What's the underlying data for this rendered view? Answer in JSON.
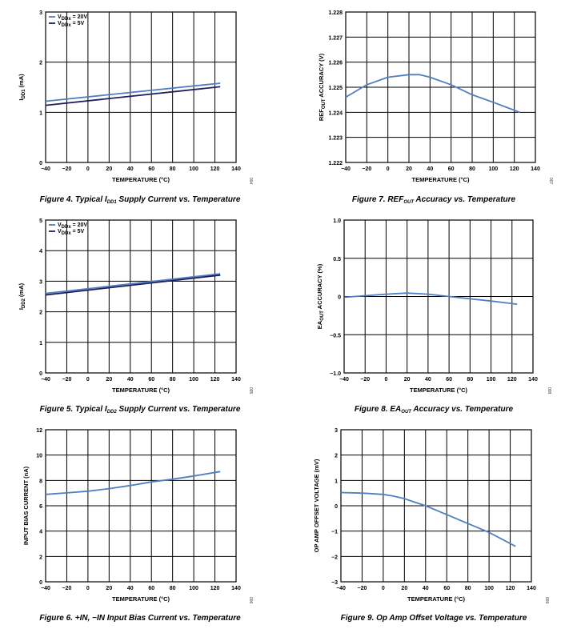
{
  "chart_data": [
    {
      "id": "fig4",
      "type": "line",
      "caption_parts": [
        "Figure 4. Typical I",
        "DD1",
        " Supply Current vs. Temperature"
      ],
      "xlabel": "TEMPERATURE (°C)",
      "ylabel_parts": [
        "I",
        "DD1",
        " (mA)"
      ],
      "xlim": [
        -40,
        140
      ],
      "ylim": [
        0,
        3
      ],
      "x_ticks": [
        "−40",
        "−20",
        "0",
        "20",
        "40",
        "60",
        "80",
        "100",
        "120",
        "140"
      ],
      "y_ticks": [
        "0",
        "1",
        "2",
        "3"
      ],
      "legend": [
        [
          "V",
          "DDx",
          " = 20V"
        ],
        [
          "V",
          "DDx",
          " = 5V"
        ]
      ],
      "series": [
        {
          "name": "VDDx = 20V",
          "color": "#4f7fc0",
          "x": [
            -40,
            125
          ],
          "y": [
            1.22,
            1.58
          ]
        },
        {
          "name": "VDDx = 5V",
          "color": "#1f1f5e",
          "x": [
            -40,
            125
          ],
          "y": [
            1.14,
            1.51
          ]
        }
      ],
      "code": "004"
    },
    {
      "id": "fig7",
      "type": "line",
      "caption_parts": [
        "Figure 7. REF",
        "OUT",
        " Accuracy vs. Temperature"
      ],
      "xlabel": "TEMPERATURE (°C)",
      "ylabel_parts": [
        "REF",
        "OUT",
        " ACCURACY (V)"
      ],
      "xlim": [
        -40,
        140
      ],
      "ylim": [
        1.222,
        1.228
      ],
      "x_ticks": [
        "−40",
        "−20",
        "0",
        "20",
        "40",
        "60",
        "80",
        "100",
        "120",
        "140"
      ],
      "y_ticks": [
        "1.222",
        "1.223",
        "1.224",
        "1.225",
        "1.226",
        "1.227",
        "1.228"
      ],
      "series": [
        {
          "name": "REFOUT",
          "color": "#4f7fc0",
          "x": [
            -40,
            -20,
            0,
            20,
            30,
            40,
            60,
            80,
            100,
            125
          ],
          "y": [
            1.2246,
            1.2251,
            1.2254,
            1.2255,
            1.2255,
            1.2254,
            1.2251,
            1.2247,
            1.2244,
            1.224
          ]
        }
      ],
      "code": "007"
    },
    {
      "id": "fig5",
      "type": "line",
      "caption_parts": [
        "Figure 5. Typical I",
        "DD2",
        " Supply Current vs. Temperature"
      ],
      "xlabel": "TEMPERATURE (°C)",
      "ylabel_parts": [
        "I",
        "DD2",
        " (mA)"
      ],
      "xlim": [
        -40,
        140
      ],
      "ylim": [
        0,
        5
      ],
      "x_ticks": [
        "−40",
        "−20",
        "0",
        "20",
        "40",
        "60",
        "80",
        "100",
        "120",
        "140"
      ],
      "y_ticks": [
        "0",
        "1",
        "2",
        "3",
        "4",
        "5"
      ],
      "legend": [
        [
          "V",
          "DDx",
          " = 20V"
        ],
        [
          "V",
          "DDx",
          " = 5V"
        ]
      ],
      "series": [
        {
          "name": "VDDx = 20V",
          "color": "#4f7fc0",
          "x": [
            -40,
            125
          ],
          "y": [
            2.6,
            3.24
          ]
        },
        {
          "name": "VDDx = 5V",
          "color": "#1f1f5e",
          "x": [
            -40,
            125
          ],
          "y": [
            2.55,
            3.2
          ]
        }
      ],
      "code": "005"
    },
    {
      "id": "fig8",
      "type": "line",
      "caption_parts": [
        "Figure 8. EA",
        "OUT",
        " Accuracy vs. Temperature"
      ],
      "xlabel": "TEMPERATURE (°C)",
      "ylabel_parts": [
        "EA",
        "OUT",
        " ACCURACY (%)"
      ],
      "xlim": [
        -40,
        140
      ],
      "ylim": [
        -1.0,
        1.0
      ],
      "x_ticks": [
        "−40",
        "−20",
        "0",
        "20",
        "40",
        "60",
        "80",
        "100",
        "120",
        "140"
      ],
      "y_ticks": [
        "−1.0",
        "−0.5",
        "0",
        "0.5",
        "1.0"
      ],
      "series": [
        {
          "name": "EAOUT",
          "color": "#4f7fc0",
          "x": [
            -40,
            -20,
            0,
            20,
            40,
            60,
            80,
            100,
            125
          ],
          "y": [
            -0.01,
            0.01,
            0.03,
            0.045,
            0.03,
            0.0,
            -0.03,
            -0.06,
            -0.1
          ]
        }
      ],
      "code": "008"
    },
    {
      "id": "fig6",
      "type": "line",
      "caption_parts": [
        "Figure 6. +IN, −IN Input Bias Current vs. Temperature"
      ],
      "xlabel": "TEMPERATURE (°C)",
      "ylabel_parts": [
        "INPUT BIAS CURRENT (nA)"
      ],
      "xlim": [
        -40,
        140
      ],
      "ylim": [
        0,
        12
      ],
      "x_ticks": [
        "−40",
        "−20",
        "0",
        "20",
        "40",
        "60",
        "80",
        "100",
        "120",
        "140"
      ],
      "y_ticks": [
        "0",
        "2",
        "4",
        "6",
        "8",
        "10",
        "12"
      ],
      "series": [
        {
          "name": "IBIAS",
          "color": "#4f7fc0",
          "x": [
            -40,
            -20,
            0,
            20,
            40,
            60,
            80,
            100,
            125
          ],
          "y": [
            6.9,
            7.02,
            7.15,
            7.35,
            7.6,
            7.88,
            8.1,
            8.35,
            8.7
          ]
        }
      ],
      "code": "006"
    },
    {
      "id": "fig9",
      "type": "line",
      "caption_parts": [
        "Figure 9. Op Amp Offset Voltage vs. Temperature"
      ],
      "xlabel": "TEMPERATURE (°C)",
      "ylabel_parts": [
        "OP AMP OFFSET VOLTAGE (mV)"
      ],
      "xlim": [
        -40,
        140
      ],
      "ylim": [
        -3,
        3
      ],
      "x_ticks": [
        "−40",
        "−20",
        "0",
        "20",
        "40",
        "60",
        "80",
        "100",
        "120",
        "140"
      ],
      "y_ticks": [
        "−3",
        "−2",
        "−1",
        "0",
        "1",
        "2",
        "3"
      ],
      "series": [
        {
          "name": "VOS",
          "color": "#4f7fc0",
          "x": [
            -40,
            -20,
            0,
            10,
            20,
            30,
            40,
            60,
            80,
            100,
            125
          ],
          "y": [
            0.52,
            0.5,
            0.45,
            0.38,
            0.28,
            0.14,
            0.0,
            -0.35,
            -0.7,
            -1.05,
            -1.6
          ]
        }
      ],
      "code": "009"
    }
  ]
}
